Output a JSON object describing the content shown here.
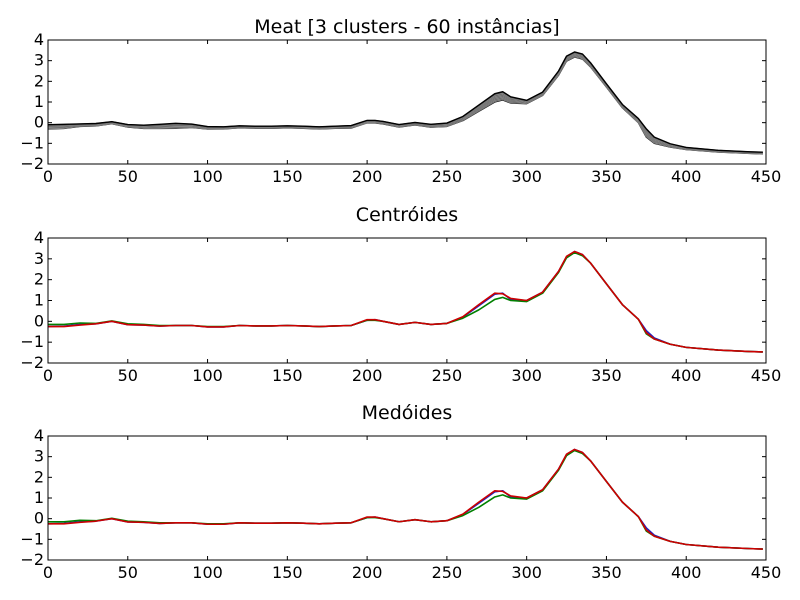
{
  "chart_data": [
    {
      "type": "line",
      "title": "Meat [3 clusters - 60 instâncias]",
      "xlabel": "",
      "ylabel": "",
      "xlim": [
        0,
        450
      ],
      "ylim": [
        -2,
        4
      ],
      "xticks": [
        "0",
        "50",
        "100",
        "150",
        "200",
        "250",
        "300",
        "350",
        "400",
        "450"
      ],
      "yticks": [
        "−2",
        "−1",
        "0",
        "1",
        "2",
        "3",
        "4"
      ],
      "grid": false,
      "legend": "none",
      "series_description": "60 overlapping gray/black instance curves",
      "x": [
        0,
        10,
        20,
        30,
        40,
        50,
        60,
        70,
        80,
        90,
        100,
        110,
        120,
        130,
        140,
        150,
        160,
        170,
        180,
        190,
        200,
        205,
        210,
        220,
        230,
        240,
        250,
        260,
        270,
        280,
        285,
        290,
        300,
        310,
        320,
        325,
        330,
        335,
        340,
        350,
        360,
        370,
        375,
        380,
        390,
        400,
        420,
        440,
        448
      ],
      "band_center": [
        -0.2,
        -0.18,
        -0.12,
        -0.1,
        0.0,
        -0.15,
        -0.2,
        -0.18,
        -0.15,
        -0.15,
        -0.25,
        -0.25,
        -0.2,
        -0.22,
        -0.22,
        -0.2,
        -0.22,
        -0.25,
        -0.22,
        -0.2,
        0.05,
        0.05,
        0.0,
        -0.15,
        -0.05,
        -0.15,
        -0.1,
        0.2,
        0.7,
        1.2,
        1.3,
        1.1,
        1.0,
        1.4,
        2.4,
        3.1,
        3.3,
        3.2,
        2.8,
        1.8,
        0.8,
        0.1,
        -0.5,
        -0.85,
        -1.1,
        -1.25,
        -1.38,
        -1.45,
        -1.47
      ],
      "band_spread": [
        0.1,
        0.1,
        0.06,
        0.06,
        0.05,
        0.06,
        0.08,
        0.1,
        0.12,
        0.08,
        0.06,
        0.05,
        0.05,
        0.05,
        0.05,
        0.05,
        0.05,
        0.05,
        0.05,
        0.06,
        0.06,
        0.06,
        0.06,
        0.06,
        0.06,
        0.07,
        0.08,
        0.1,
        0.15,
        0.2,
        0.2,
        0.15,
        0.08,
        0.08,
        0.1,
        0.12,
        0.12,
        0.12,
        0.1,
        0.08,
        0.08,
        0.1,
        0.2,
        0.15,
        0.08,
        0.05,
        0.04,
        0.04,
        0.04
      ],
      "colors": {
        "band": "#808080",
        "edge": "#000000"
      }
    },
    {
      "type": "line",
      "title": "Centróides",
      "xlabel": "",
      "ylabel": "",
      "xlim": [
        0,
        450
      ],
      "ylim": [
        -2,
        4
      ],
      "xticks": [
        "0",
        "50",
        "100",
        "150",
        "200",
        "250",
        "300",
        "350",
        "400",
        "450"
      ],
      "yticks": [
        "−2",
        "−1",
        "0",
        "1",
        "2",
        "3",
        "4"
      ],
      "grid": false,
      "legend": "none",
      "x": [
        0,
        10,
        20,
        30,
        40,
        50,
        60,
        70,
        80,
        90,
        100,
        110,
        120,
        130,
        140,
        150,
        160,
        170,
        180,
        190,
        200,
        205,
        210,
        220,
        230,
        240,
        250,
        260,
        270,
        280,
        285,
        290,
        300,
        310,
        320,
        325,
        330,
        335,
        340,
        350,
        360,
        370,
        375,
        380,
        390,
        400,
        420,
        440,
        448
      ],
      "series": [
        {
          "color": "#1f1fbf",
          "values": [
            -0.25,
            -0.23,
            -0.15,
            -0.12,
            0.0,
            -0.16,
            -0.18,
            -0.23,
            -0.2,
            -0.2,
            -0.27,
            -0.27,
            -0.2,
            -0.22,
            -0.22,
            -0.2,
            -0.22,
            -0.25,
            -0.22,
            -0.2,
            0.05,
            0.08,
            0.0,
            -0.15,
            -0.05,
            -0.15,
            -0.1,
            0.2,
            0.75,
            1.3,
            1.35,
            1.05,
            1.0,
            1.4,
            2.4,
            3.1,
            3.35,
            3.2,
            2.8,
            1.8,
            0.8,
            0.1,
            -0.45,
            -0.8,
            -1.1,
            -1.25,
            -1.38,
            -1.45,
            -1.47
          ]
        },
        {
          "color": "#008000",
          "values": [
            -0.15,
            -0.15,
            -0.08,
            -0.1,
            0.02,
            -0.12,
            -0.15,
            -0.2,
            -0.2,
            -0.2,
            -0.25,
            -0.25,
            -0.2,
            -0.22,
            -0.22,
            -0.2,
            -0.22,
            -0.25,
            -0.22,
            -0.2,
            0.05,
            0.05,
            0.0,
            -0.15,
            -0.05,
            -0.15,
            -0.1,
            0.15,
            0.55,
            1.05,
            1.15,
            1.0,
            0.95,
            1.35,
            2.35,
            3.05,
            3.3,
            3.15,
            2.8,
            1.8,
            0.8,
            0.1,
            -0.6,
            -0.85,
            -1.1,
            -1.25,
            -1.38,
            -1.45,
            -1.47
          ]
        },
        {
          "color": "#cc0000",
          "values": [
            -0.25,
            -0.25,
            -0.18,
            -0.12,
            0.0,
            -0.16,
            -0.18,
            -0.23,
            -0.2,
            -0.2,
            -0.27,
            -0.27,
            -0.2,
            -0.22,
            -0.22,
            -0.2,
            -0.22,
            -0.25,
            -0.22,
            -0.2,
            0.08,
            0.08,
            0.0,
            -0.15,
            -0.05,
            -0.15,
            -0.1,
            0.22,
            0.8,
            1.35,
            1.32,
            1.1,
            1.0,
            1.4,
            2.4,
            3.12,
            3.35,
            3.2,
            2.8,
            1.8,
            0.8,
            0.1,
            -0.55,
            -0.85,
            -1.1,
            -1.25,
            -1.38,
            -1.45,
            -1.47
          ]
        }
      ]
    },
    {
      "type": "line",
      "title": "Medóides",
      "xlabel": "",
      "ylabel": "",
      "xlim": [
        0,
        450
      ],
      "ylim": [
        -2,
        4
      ],
      "xticks": [
        "0",
        "50",
        "100",
        "150",
        "200",
        "250",
        "300",
        "350",
        "400",
        "450"
      ],
      "yticks": [
        "−2",
        "−1",
        "0",
        "1",
        "2",
        "3",
        "4"
      ],
      "grid": false,
      "legend": "none",
      "x": [
        0,
        10,
        20,
        30,
        40,
        50,
        60,
        70,
        80,
        90,
        100,
        110,
        120,
        130,
        140,
        150,
        160,
        170,
        180,
        190,
        200,
        205,
        210,
        220,
        230,
        240,
        250,
        260,
        270,
        280,
        285,
        290,
        300,
        310,
        320,
        325,
        330,
        335,
        340,
        350,
        360,
        370,
        375,
        380,
        390,
        400,
        420,
        440,
        448
      ],
      "series": [
        {
          "color": "#1f1fbf",
          "values": [
            -0.25,
            -0.23,
            -0.15,
            -0.12,
            0.0,
            -0.16,
            -0.18,
            -0.23,
            -0.2,
            -0.2,
            -0.27,
            -0.27,
            -0.2,
            -0.22,
            -0.22,
            -0.2,
            -0.22,
            -0.25,
            -0.22,
            -0.2,
            0.05,
            0.08,
            0.0,
            -0.15,
            -0.05,
            -0.15,
            -0.1,
            0.2,
            0.75,
            1.3,
            1.35,
            1.05,
            1.0,
            1.4,
            2.4,
            3.1,
            3.35,
            3.2,
            2.8,
            1.8,
            0.8,
            0.1,
            -0.45,
            -0.8,
            -1.1,
            -1.25,
            -1.38,
            -1.45,
            -1.47
          ]
        },
        {
          "color": "#008000",
          "values": [
            -0.15,
            -0.15,
            -0.08,
            -0.1,
            0.02,
            -0.12,
            -0.15,
            -0.2,
            -0.2,
            -0.2,
            -0.25,
            -0.25,
            -0.2,
            -0.22,
            -0.22,
            -0.2,
            -0.22,
            -0.25,
            -0.22,
            -0.2,
            0.05,
            0.05,
            0.0,
            -0.15,
            -0.05,
            -0.15,
            -0.1,
            0.15,
            0.55,
            1.05,
            1.15,
            1.0,
            0.95,
            1.35,
            2.35,
            3.05,
            3.3,
            3.15,
            2.8,
            1.8,
            0.8,
            0.1,
            -0.6,
            -0.85,
            -1.1,
            -1.25,
            -1.38,
            -1.45,
            -1.47
          ]
        },
        {
          "color": "#cc0000",
          "values": [
            -0.25,
            -0.25,
            -0.18,
            -0.12,
            0.0,
            -0.16,
            -0.18,
            -0.23,
            -0.2,
            -0.2,
            -0.27,
            -0.27,
            -0.2,
            -0.22,
            -0.22,
            -0.2,
            -0.22,
            -0.25,
            -0.22,
            -0.2,
            0.08,
            0.08,
            0.0,
            -0.15,
            -0.05,
            -0.15,
            -0.1,
            0.22,
            0.8,
            1.35,
            1.32,
            1.1,
            1.0,
            1.4,
            2.4,
            3.12,
            3.35,
            3.2,
            2.8,
            1.8,
            0.8,
            0.1,
            -0.55,
            -0.85,
            -1.1,
            -1.25,
            -1.38,
            -1.45,
            -1.47
          ]
        }
      ]
    }
  ]
}
